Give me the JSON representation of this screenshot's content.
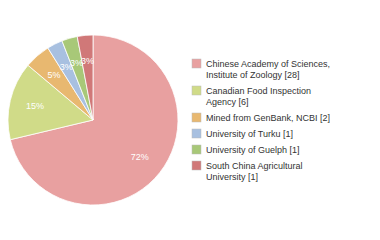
{
  "chart_data": {
    "type": "pie",
    "categories": [
      "Chinese Academy of Sciences,\nInstitute of Zoology [28]",
      "Canadian Food Inspection\nAgency [6]",
      "Mined from GenBank, NCBI [2]",
      "University of Turku [1]",
      "University of Guelph [1]",
      "South China Agricultural\nUniversity [1]"
    ],
    "values": [
      72,
      15,
      5,
      3,
      3,
      3
    ],
    "value_labels": [
      "72%",
      "15%",
      "5%",
      "3%",
      "3%",
      "3%"
    ],
    "colors": [
      "#e8a0a0",
      "#d0db88",
      "#e8b870",
      "#a8c0e0",
      "#a8c878",
      "#d07878"
    ],
    "data_labels": true,
    "legend": "right"
  }
}
